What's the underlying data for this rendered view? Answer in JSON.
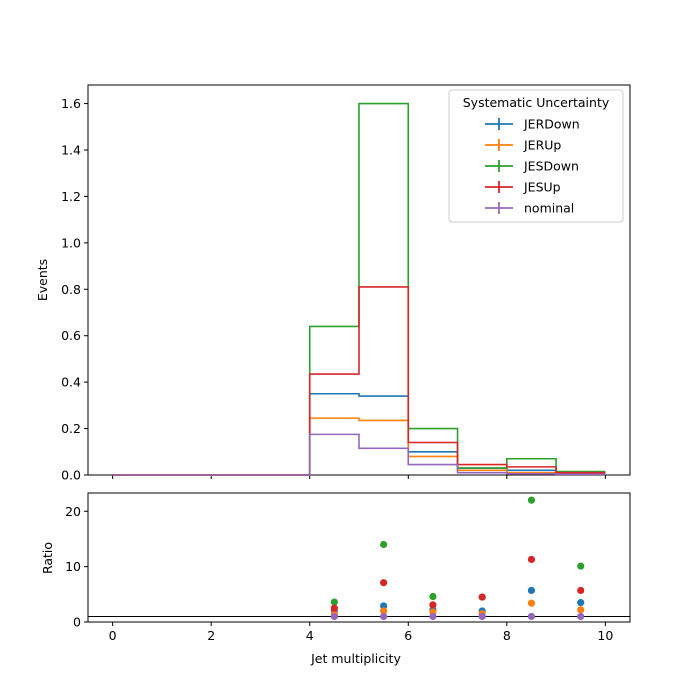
{
  "chart_data": {
    "type": "step",
    "bin_edges": [
      0,
      1,
      2,
      3,
      4,
      5,
      6,
      7,
      8,
      9,
      10
    ],
    "xlabel": "Jet multiplicity",
    "xlim": [
      -0.5,
      10.5
    ],
    "xticks": [
      0,
      2,
      4,
      6,
      8,
      10
    ],
    "colors": {
      "JERDown": "#1f77b4",
      "JERUp": "#ff7f0e",
      "JESDown": "#2ca02c",
      "JESUp": "#d62728",
      "nominal": "#9467bd"
    },
    "legend": {
      "title": "Systematic Uncertainty",
      "position": "top-right",
      "entries": [
        "JERDown",
        "JERUp",
        "JESDown",
        "JESUp",
        "nominal"
      ]
    },
    "top_panel": {
      "ylabel": "Events",
      "ylim": [
        0,
        1.68
      ],
      "yticks": [
        "0.0",
        "0.2",
        "0.4",
        "0.6",
        "0.8",
        "1.0",
        "1.2",
        "1.4",
        "1.6"
      ],
      "series": [
        {
          "name": "JERDown",
          "values": [
            0,
            0,
            0,
            0,
            0.35,
            0.34,
            0.1,
            0.03,
            0.02,
            0.01
          ]
        },
        {
          "name": "JERUp",
          "values": [
            0,
            0,
            0,
            0,
            0.245,
            0.235,
            0.08,
            0.02,
            0.01,
            0.007
          ]
        },
        {
          "name": "JESDown",
          "values": [
            0,
            0,
            0,
            0,
            0.64,
            1.6,
            0.2,
            0.03,
            0.07,
            0.015
          ]
        },
        {
          "name": "JESUp",
          "values": [
            0,
            0,
            0,
            0,
            0.435,
            0.81,
            0.14,
            0.045,
            0.035,
            0.01
          ]
        },
        {
          "name": "nominal",
          "values": [
            0,
            0,
            0,
            0,
            0.175,
            0.115,
            0.045,
            0.01,
            0.005,
            0.003
          ]
        }
      ]
    },
    "ratio_panel": {
      "ylabel": "Ratio",
      "ylim": [
        0,
        23.3
      ],
      "yticks": [
        "0",
        "10",
        "20"
      ],
      "reference_line": 1,
      "x": [
        4.5,
        5.5,
        6.5,
        7.5,
        8.5,
        9.5
      ],
      "series": [
        {
          "name": "JERDown",
          "values": [
            2.0,
            2.9,
            2.2,
            2.0,
            5.7,
            3.5
          ]
        },
        {
          "name": "JERUp",
          "values": [
            1.4,
            2.0,
            1.8,
            1.5,
            3.4,
            2.2
          ]
        },
        {
          "name": "JESDown",
          "values": [
            3.6,
            14.0,
            4.6,
            4.5,
            22.0,
            10.1
          ]
        },
        {
          "name": "JESUp",
          "values": [
            2.5,
            7.1,
            3.1,
            4.5,
            11.3,
            5.7
          ]
        },
        {
          "name": "nominal",
          "values": [
            1,
            1,
            1,
            1,
            1,
            1
          ]
        }
      ]
    }
  }
}
